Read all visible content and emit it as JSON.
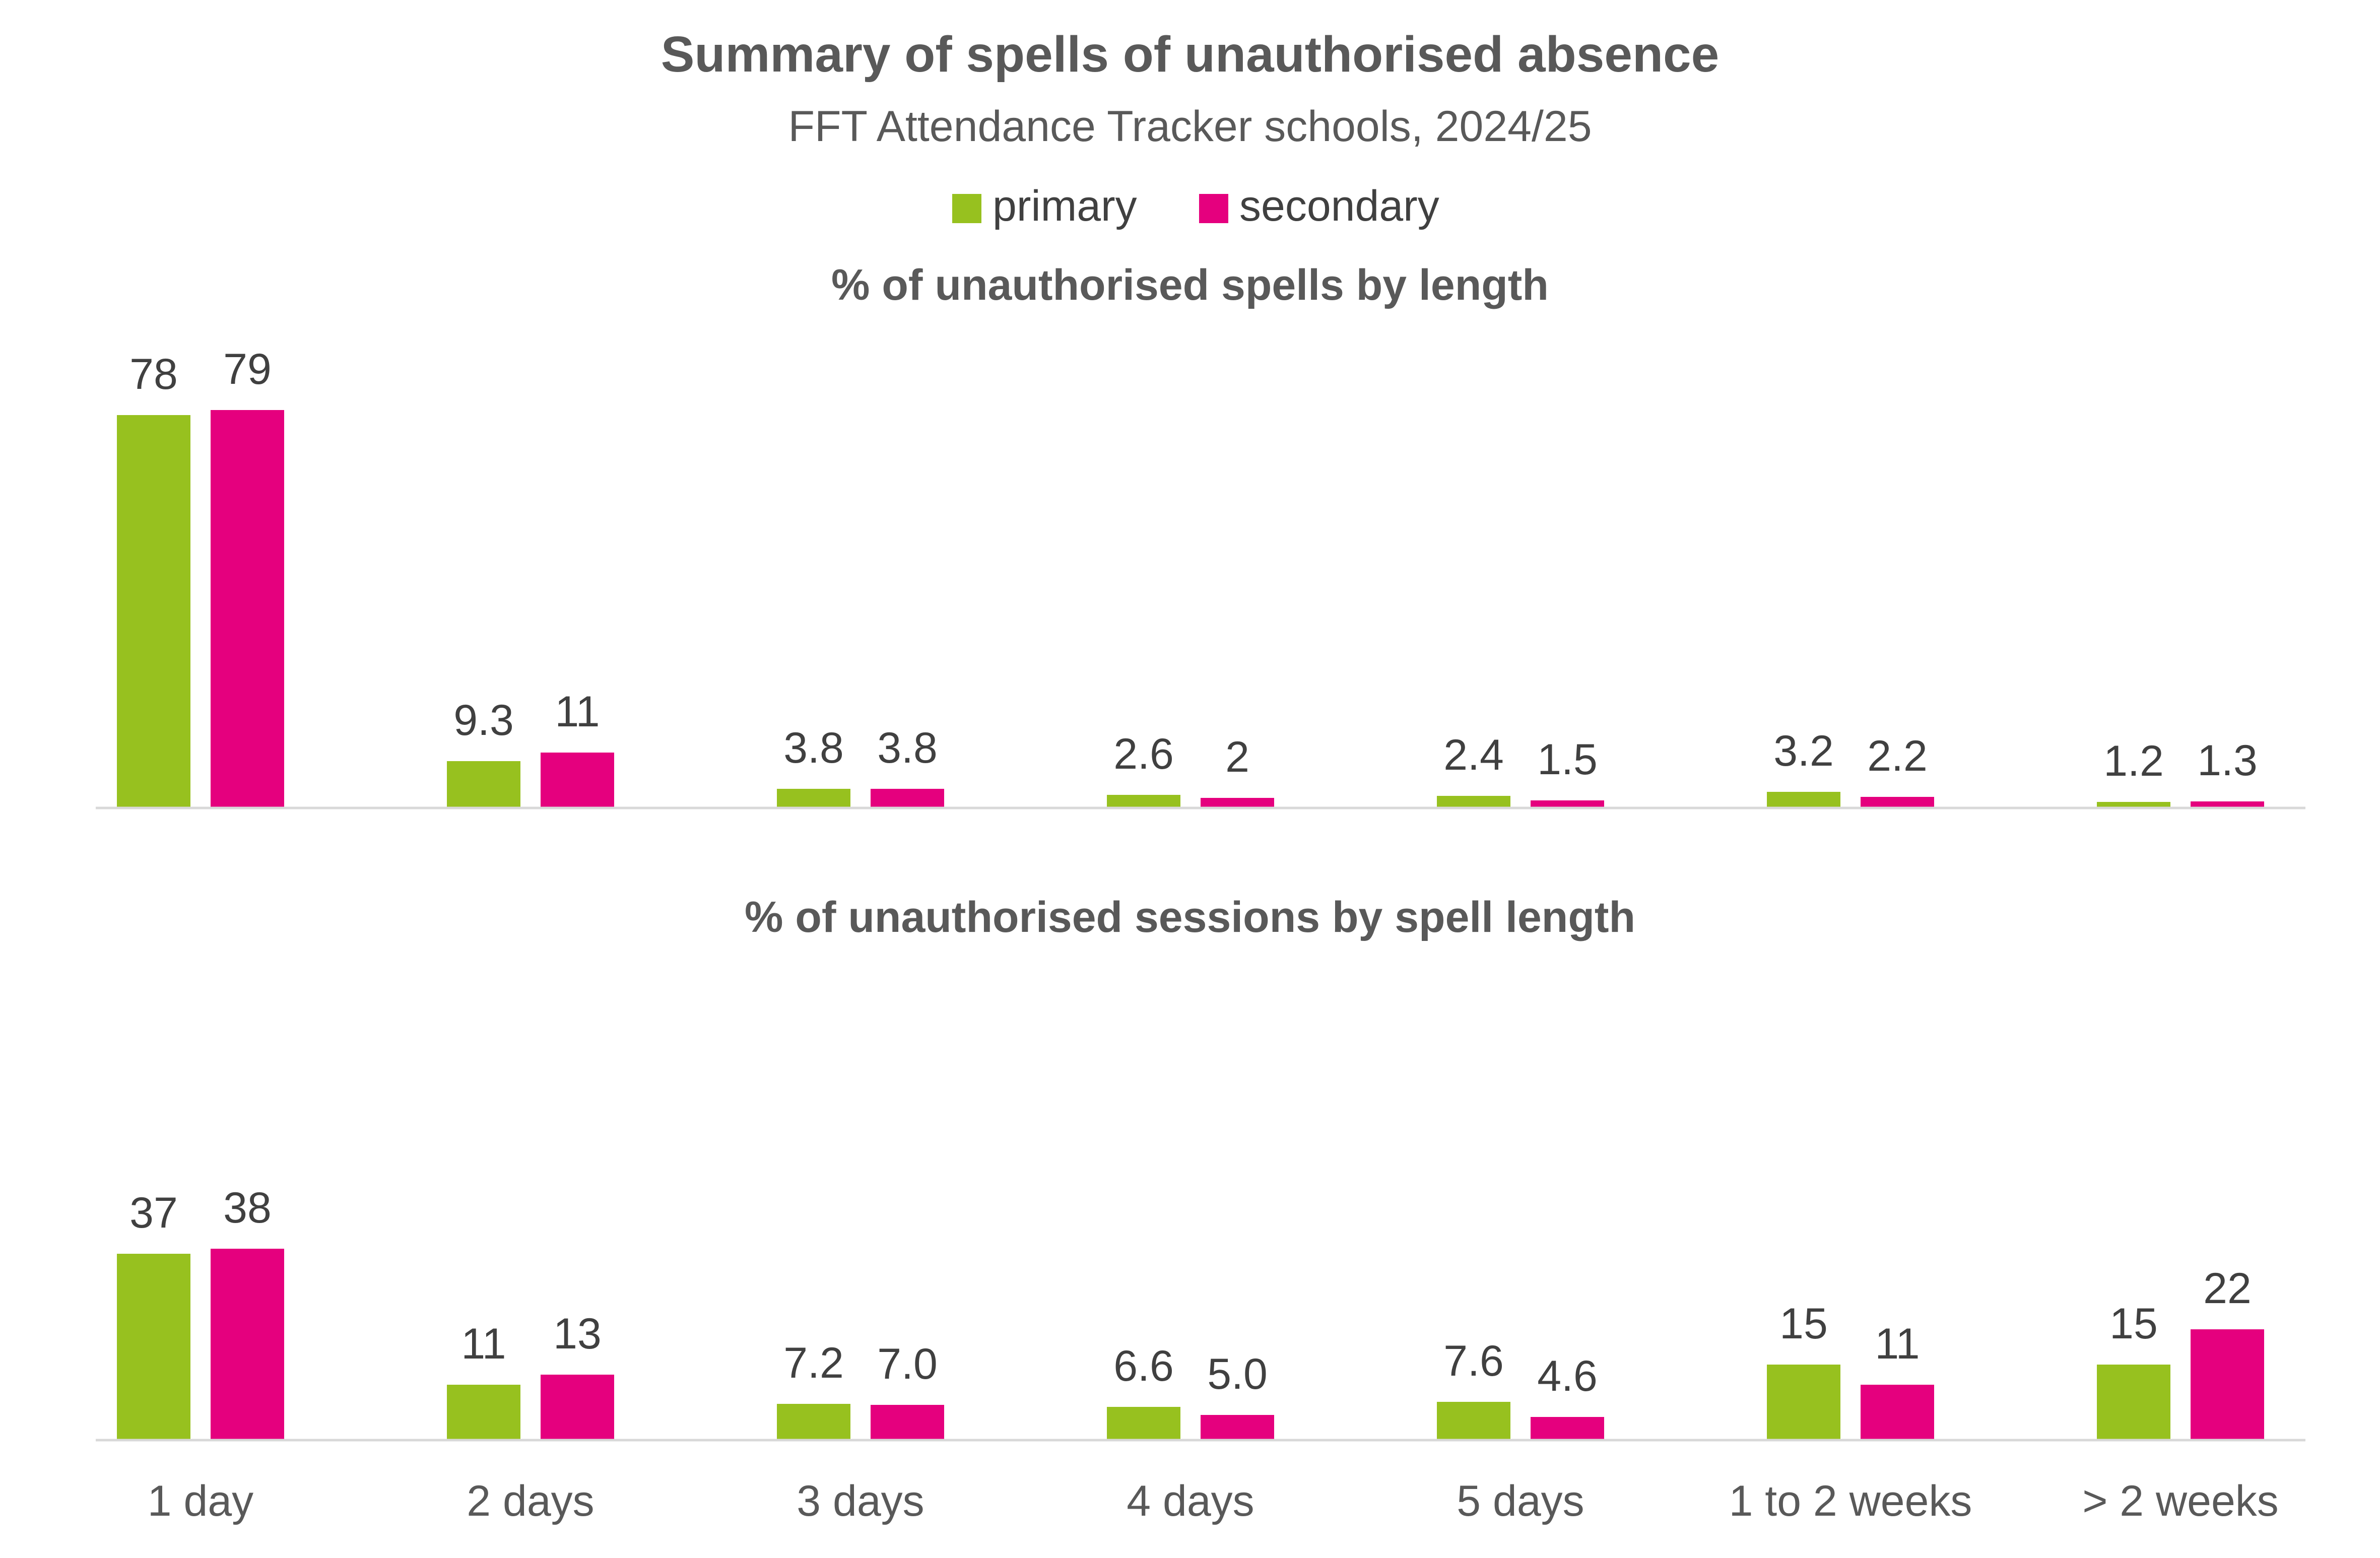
{
  "title": "Summary of spells of unauthorised absence",
  "subtitle": "FFT Attendance Tracker schools, 2024/25",
  "legend": [
    {
      "label": "primary",
      "color": "#97C11F"
    },
    {
      "label": "secondary",
      "color": "#E5007E"
    }
  ],
  "colors": {
    "primary": "#97C11F",
    "secondary": "#E5007E",
    "axis": "#D8D8D8",
    "title": "#595959",
    "label": "#404040"
  },
  "chart_data": [
    {
      "type": "bar",
      "title": "% of unauthorised spells by length",
      "categories": [
        "1 day",
        "2 days",
        "3 days",
        "4 days",
        "5 days",
        "1 to 2 weeks",
        "> 2 weeks"
      ],
      "series": [
        {
          "name": "primary",
          "values": [
            78,
            9.3,
            3.8,
            2.6,
            2.4,
            3.2,
            1.2
          ],
          "labels": [
            "78",
            "9.3",
            "3.8",
            "2.6",
            "2.4",
            "3.2",
            "1.2"
          ]
        },
        {
          "name": "secondary",
          "values": [
            79,
            11,
            3.8,
            2,
            1.5,
            2.2,
            1.3
          ],
          "labels": [
            "79",
            "11",
            "3.8",
            "2",
            "1.5",
            "2.2",
            "1.3"
          ]
        }
      ],
      "ylim": [
        0,
        100
      ],
      "show_x_labels": false,
      "grid": false
    },
    {
      "type": "bar",
      "title": "% of unauthorised sessions by spell length",
      "categories": [
        "1 day",
        "2 days",
        "3 days",
        "4 days",
        "5 days",
        "1 to 2 weeks",
        "> 2 weeks"
      ],
      "series": [
        {
          "name": "primary",
          "values": [
            37,
            11,
            7.2,
            6.6,
            7.6,
            15,
            15
          ],
          "labels": [
            "37",
            "11",
            "7.2",
            "6.6",
            "7.6",
            "15",
            "15"
          ]
        },
        {
          "name": "secondary",
          "values": [
            38,
            13,
            7.0,
            5.0,
            4.6,
            11,
            22
          ],
          "labels": [
            "38",
            "13",
            "7.0",
            "5.0",
            "4.6",
            "11",
            "22"
          ]
        }
      ],
      "ylim": [
        0,
        100
      ],
      "show_x_labels": true,
      "grid": false
    }
  ]
}
